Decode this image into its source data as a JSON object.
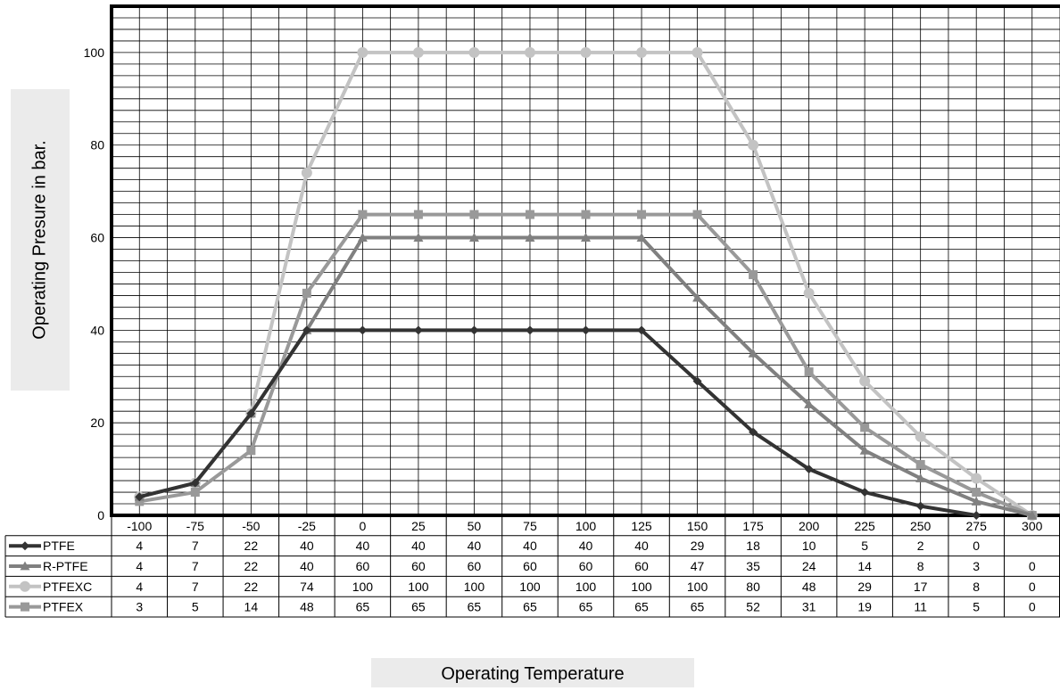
{
  "chart_data": {
    "type": "line",
    "title": "",
    "xlabel": "Operating Temperature",
    "ylabel": "Operating Presure in bar.",
    "categories": [
      "-100",
      "-75",
      "-50",
      "-25",
      "0",
      "25",
      "50",
      "75",
      "100",
      "125",
      "150",
      "175",
      "200",
      "225",
      "250",
      "275",
      "300"
    ],
    "ylim": [
      0,
      110
    ],
    "yticks": [
      "0",
      "20",
      "40",
      "60",
      "80",
      "100"
    ],
    "grid": true,
    "legend": "data-table",
    "series": [
      {
        "name": "PTFE",
        "marker": "diamond",
        "color": "#333333",
        "values": [
          4,
          7,
          22,
          40,
          40,
          40,
          40,
          40,
          40,
          40,
          29,
          18,
          10,
          5,
          2,
          0,
          null
        ]
      },
      {
        "name": "R-PTFE",
        "marker": "triangle",
        "color": "#808080",
        "values": [
          4,
          7,
          22,
          40,
          60,
          60,
          60,
          60,
          60,
          60,
          47,
          35,
          24,
          14,
          8,
          3,
          0
        ]
      },
      {
        "name": "PTFEXC",
        "marker": "circle",
        "color": "#c3c3c3",
        "values": [
          4,
          7,
          22,
          74,
          100,
          100,
          100,
          100,
          100,
          100,
          100,
          80,
          48,
          29,
          17,
          8,
          0
        ]
      },
      {
        "name": "PTFEX",
        "marker": "square",
        "color": "#999999",
        "values": [
          3,
          5,
          14,
          48,
          65,
          65,
          65,
          65,
          65,
          65,
          65,
          52,
          31,
          19,
          11,
          5,
          0
        ]
      }
    ]
  }
}
